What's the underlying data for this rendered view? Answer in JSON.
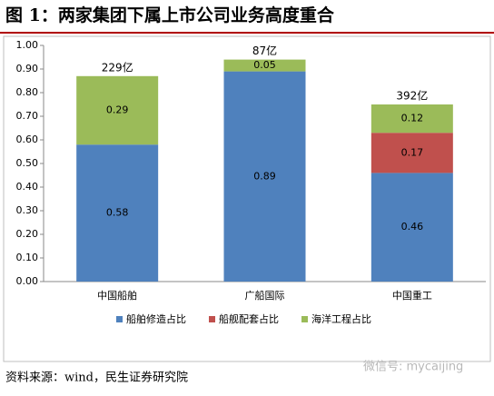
{
  "header": {
    "title": "图 1：两家集团下属上市公司业务高度重合"
  },
  "chart_data": {
    "type": "stacked-bar",
    "categories": [
      "中国船舶",
      "广船国际",
      "中国重工"
    ],
    "series": [
      {
        "name": "船舶修造占比",
        "color": "#4f81bd",
        "values": [
          0.58,
          0.89,
          0.46
        ]
      },
      {
        "name": "船舰配套占比",
        "color": "#c0504d",
        "values": [
          null,
          null,
          0.17
        ]
      },
      {
        "name": "海洋工程占比",
        "color": "#9bbb59",
        "values": [
          0.29,
          0.05,
          0.12
        ]
      }
    ],
    "annotations": [
      "229亿",
      "87亿",
      "392亿"
    ],
    "ylim": [
      0,
      1
    ],
    "yticks": [
      {
        "value": 0,
        "label": "0.00"
      },
      {
        "value": 0.1,
        "label": "0.10"
      },
      {
        "value": 0.2,
        "label": "0.20"
      },
      {
        "value": 0.3,
        "label": "0.30"
      },
      {
        "value": 0.4,
        "label": "0.40"
      },
      {
        "value": 0.5,
        "label": "0.50"
      },
      {
        "value": 0.6,
        "label": "0.60"
      },
      {
        "value": 0.7,
        "label": "0.70"
      },
      {
        "value": 0.8,
        "label": "0.80"
      },
      {
        "value": 0.9,
        "label": "0.90"
      },
      {
        "value": 1,
        "label": "1.00"
      }
    ],
    "grid": false,
    "legend": "bottom"
  },
  "footer": {
    "source": "资料来源：wind，民生证券研究院",
    "watermark": "微信号: mycaijing"
  }
}
